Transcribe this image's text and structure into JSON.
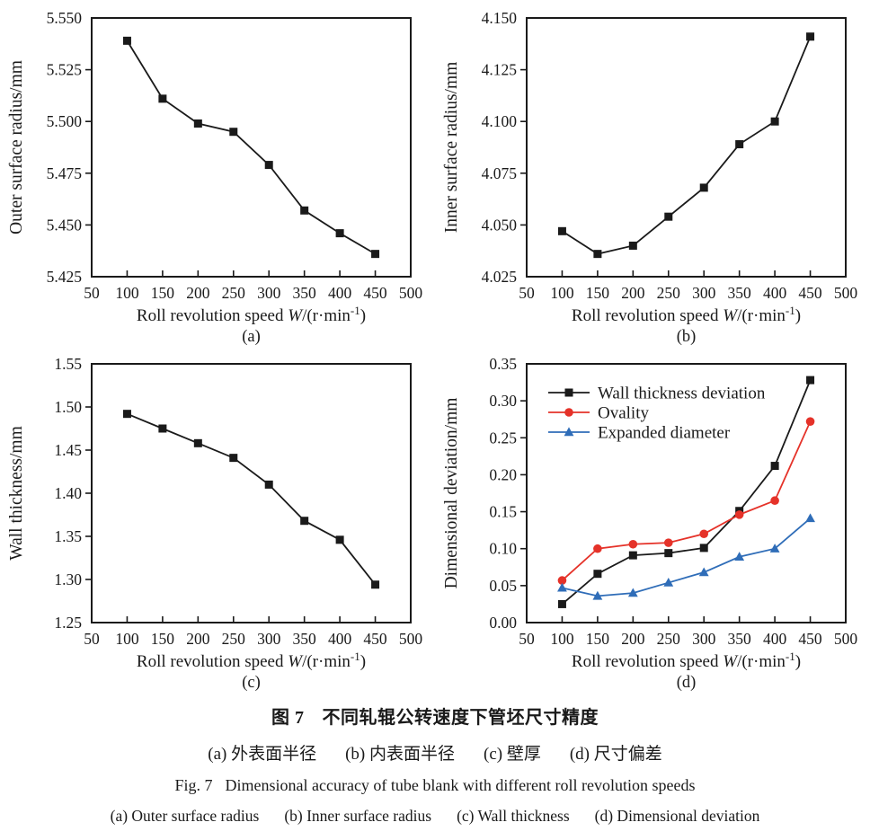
{
  "chart_data": [
    {
      "id": "a",
      "type": "line",
      "sublabel": "(a)",
      "xlabel": "Roll revolution speed W/(r·min⁻¹)",
      "ylabel": "Outer surface radius/mm",
      "x": [
        100,
        150,
        200,
        250,
        300,
        350,
        400,
        450
      ],
      "xlim": [
        50,
        500
      ],
      "xticks": [
        50,
        100,
        150,
        200,
        250,
        300,
        350,
        400,
        450,
        500
      ],
      "ylim": [
        5.425,
        5.55
      ],
      "yticks": [
        "5.425",
        "5.450",
        "5.475",
        "5.500",
        "5.525",
        "5.550"
      ],
      "grid": false,
      "legend": false,
      "series": [
        {
          "name": "Outer surface radius",
          "color": "#1a1a1a",
          "marker": "square",
          "values": [
            5.539,
            5.511,
            5.499,
            5.495,
            5.479,
            5.457,
            5.446,
            5.436
          ]
        }
      ]
    },
    {
      "id": "b",
      "type": "line",
      "sublabel": "(b)",
      "xlabel": "Roll revolution speed W/(r·min⁻¹)",
      "ylabel": "Inner surface radius/mm",
      "x": [
        100,
        150,
        200,
        250,
        300,
        350,
        400,
        450
      ],
      "xlim": [
        50,
        500
      ],
      "xticks": [
        50,
        100,
        150,
        200,
        250,
        300,
        350,
        400,
        450,
        500
      ],
      "ylim": [
        4.025,
        4.15
      ],
      "yticks": [
        "4.025",
        "4.050",
        "4.075",
        "4.100",
        "4.125",
        "4.150"
      ],
      "grid": false,
      "legend": false,
      "series": [
        {
          "name": "Inner surface radius",
          "color": "#1a1a1a",
          "marker": "square",
          "values": [
            4.047,
            4.036,
            4.04,
            4.054,
            4.068,
            4.089,
            4.1,
            4.141
          ]
        }
      ]
    },
    {
      "id": "c",
      "type": "line",
      "sublabel": "(c)",
      "xlabel": "Roll revolution speed W/(r·min⁻¹)",
      "ylabel": "Wall thickness/mm",
      "x": [
        100,
        150,
        200,
        250,
        300,
        350,
        400,
        450
      ],
      "xlim": [
        50,
        500
      ],
      "xticks": [
        50,
        100,
        150,
        200,
        250,
        300,
        350,
        400,
        450,
        500
      ],
      "ylim": [
        1.25,
        1.55
      ],
      "yticks": [
        "1.25",
        "1.30",
        "1.35",
        "1.40",
        "1.45",
        "1.50",
        "1.55"
      ],
      "grid": false,
      "legend": false,
      "series": [
        {
          "name": "Wall thickness",
          "color": "#1a1a1a",
          "marker": "square",
          "values": [
            1.492,
            1.475,
            1.458,
            1.441,
            1.41,
            1.368,
            1.346,
            1.294
          ]
        }
      ]
    },
    {
      "id": "d",
      "type": "line",
      "sublabel": "(d)",
      "xlabel": "Roll revolution speed W/(r·min⁻¹)",
      "ylabel": "Dimensional deviation/mm",
      "x": [
        100,
        150,
        200,
        250,
        300,
        350,
        400,
        450
      ],
      "xlim": [
        50,
        500
      ],
      "xticks": [
        50,
        100,
        150,
        200,
        250,
        300,
        350,
        400,
        450,
        500
      ],
      "ylim": [
        0,
        0.35
      ],
      "yticks": [
        "0.00",
        "0.05",
        "0.10",
        "0.15",
        "0.20",
        "0.25",
        "0.30",
        "0.35"
      ],
      "grid": false,
      "legend": true,
      "legend_position": "top-left",
      "series": [
        {
          "name": "Wall thickness deviation",
          "color": "#1a1a1a",
          "marker": "square",
          "values": [
            0.025,
            0.066,
            0.091,
            0.094,
            0.101,
            0.151,
            0.212,
            0.328
          ]
        },
        {
          "name": "Ovality",
          "color": "#e53229",
          "marker": "circle",
          "values": [
            0.057,
            0.1,
            0.106,
            0.108,
            0.12,
            0.146,
            0.165,
            0.272
          ]
        },
        {
          "name": "Expanded diameter",
          "color": "#2f6db8",
          "marker": "triangle",
          "values": [
            0.047,
            0.036,
            0.04,
            0.054,
            0.068,
            0.089,
            0.1,
            0.141
          ]
        }
      ]
    }
  ],
  "x_axis_label_parts": {
    "pre": "Roll revolution speed ",
    "var": "W",
    "mid": "/(r·min",
    "sup": "-1",
    "post": ")"
  },
  "caption": {
    "zh_label": "图 7",
    "zh_title": "不同轧辊公转速度下管坯尺寸精度",
    "zh_items": [
      "(a) 外表面半径",
      "(b) 内表面半径",
      "(c) 壁厚",
      "(d) 尺寸偏差"
    ],
    "en_label": "Fig. 7",
    "en_title": "Dimensional accuracy of tube blank with different roll revolution speeds",
    "en_items": [
      "(a) Outer surface radius",
      "(b) Inner surface radius",
      "(c) Wall thickness",
      "(d) Dimensional deviation"
    ]
  },
  "colors": {
    "axis": "#1a1a1a",
    "black_series": "#1a1a1a",
    "red_series": "#e53229",
    "blue_series": "#2f6db8"
  }
}
